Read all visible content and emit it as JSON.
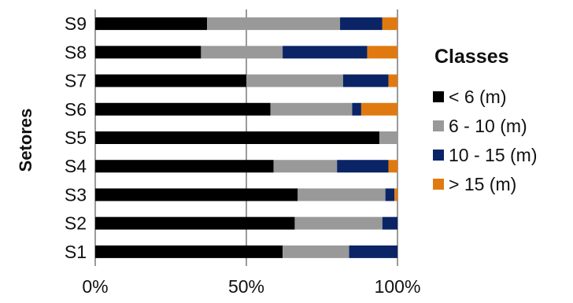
{
  "chart_data": {
    "type": "bar",
    "orientation": "horizontal",
    "stacked": "percent",
    "title": "",
    "xlabel": "",
    "ylabel": "Setores",
    "categories": [
      "S1",
      "S2",
      "S3",
      "S4",
      "S5",
      "S6",
      "S7",
      "S8",
      "S9"
    ],
    "series": [
      {
        "name": "< 6 (m)",
        "color": "#000000",
        "values": [
          62,
          66,
          67,
          59,
          94,
          58,
          50,
          35,
          37
        ]
      },
      {
        "name": "6 - 10 (m)",
        "color": "#999999",
        "values": [
          22,
          29,
          29,
          21,
          6,
          27,
          32,
          27,
          44
        ]
      },
      {
        "name": "10 - 15 (m)",
        "color": "#0a2466",
        "values": [
          16,
          5,
          3,
          17,
          0,
          3,
          15,
          28,
          14
        ]
      },
      {
        "name": "> 15 (m)",
        "color": "#e07a10",
        "values": [
          0,
          0,
          1,
          3,
          0,
          12,
          3,
          10,
          5
        ]
      }
    ],
    "xlim": [
      0,
      100
    ],
    "xticks": [
      "0%",
      "50%",
      "100%"
    ],
    "grid": true,
    "legend": {
      "title": "Classes",
      "position": "right"
    }
  }
}
